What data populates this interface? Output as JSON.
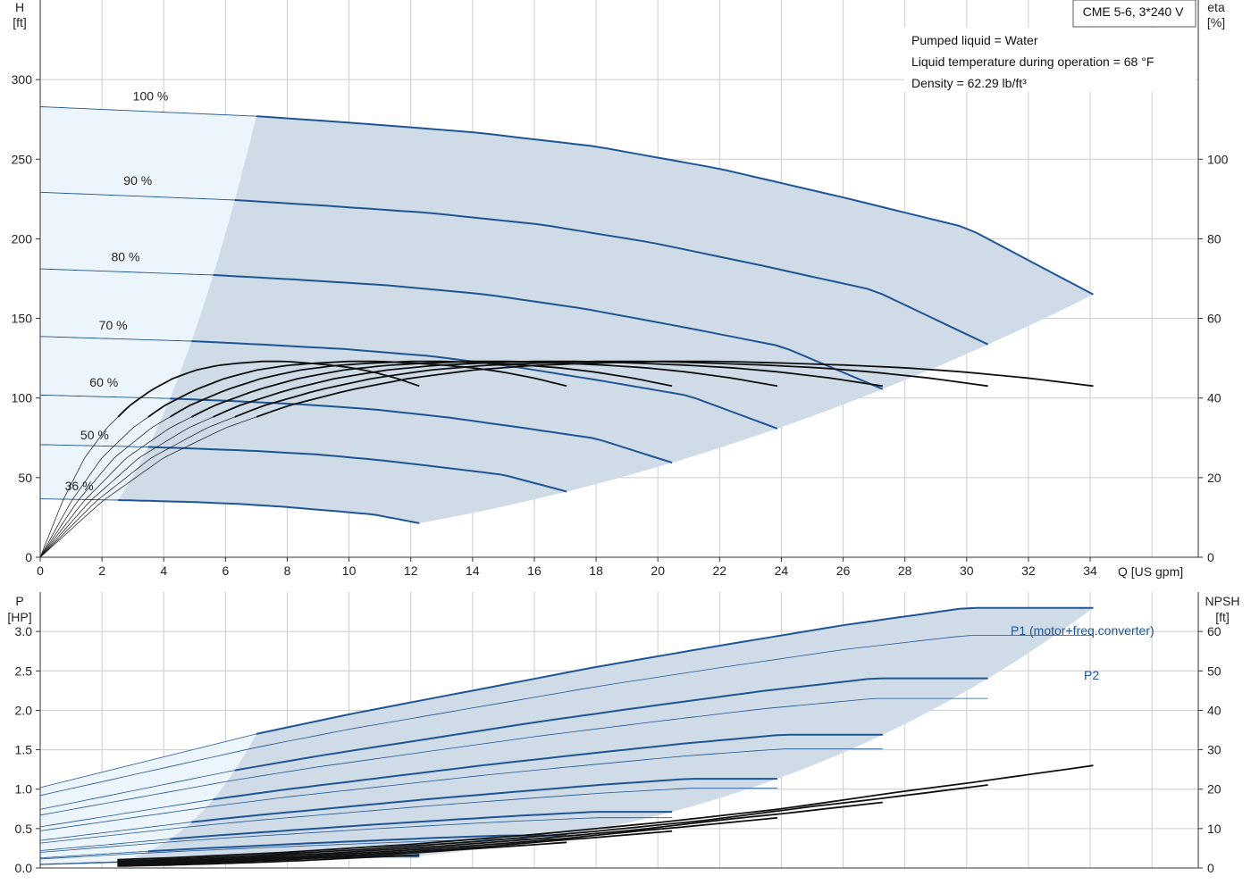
{
  "product_box": "CME 5-6, 3*240 V",
  "info_lines": [
    "Pumped liquid = Water",
    "Liquid temperature during operation = 68 °F",
    "Density = 62.29 lb/ft³"
  ],
  "colors": {
    "curve": "#1f5595",
    "efficiency": "#111111",
    "operating_area": "#cfdbe7",
    "extended_area": "#ecf5fc",
    "grid": "#cccccc",
    "axis": "#333333"
  },
  "chart_data": [
    {
      "type": "line",
      "title": "",
      "xlabel": "Q [US gpm]",
      "ylabel": "H [ft]",
      "y2label": "eta [%]",
      "xlim": [
        0,
        37.5
      ],
      "ylim": [
        0,
        350
      ],
      "y2lim": [
        0,
        140
      ],
      "xticks": [
        0,
        2,
        4,
        6,
        8,
        10,
        12,
        14,
        16,
        18,
        20,
        22,
        24,
        26,
        28,
        30,
        32,
        34
      ],
      "yticks": [
        0,
        50,
        100,
        150,
        200,
        250,
        300
      ],
      "y2ticks": [
        0,
        20,
        40,
        60,
        80,
        100
      ],
      "grid": true,
      "speeds": [
        {
          "label": "100 %",
          "frac": 1.0,
          "label_x": 3.0,
          "label_y": 287
        },
        {
          "label": "90 %",
          "frac": 0.9,
          "label_x": 2.7,
          "label_y": 234
        },
        {
          "label": "80 %",
          "frac": 0.8,
          "label_x": 2.3,
          "label_y": 186
        },
        {
          "label": "70 %",
          "frac": 0.7,
          "label_x": 1.9,
          "label_y": 143
        },
        {
          "label": "60 %",
          "frac": 0.6,
          "label_x": 1.6,
          "label_y": 107
        },
        {
          "label": "50 %",
          "frac": 0.5,
          "label_x": 1.3,
          "label_y": 74
        },
        {
          "label": "36 %",
          "frac": 0.36,
          "label_x": 0.8,
          "label_y": 42
        }
      ],
      "head_curve_100": {
        "q": [
          0,
          7,
          10,
          14,
          18,
          22,
          26,
          30,
          34.1
        ],
        "h": [
          283,
          277,
          273,
          267,
          258,
          244,
          226,
          207,
          165
        ]
      },
      "efficiency_curve_100": {
        "q": [
          0,
          2,
          4,
          6,
          8,
          10,
          12,
          14,
          16,
          18,
          20,
          22,
          24,
          26,
          28,
          30,
          32,
          34.1
        ],
        "eta": [
          0,
          14,
          25,
          32.5,
          38,
          42,
          45,
          47,
          48.2,
          48.8,
          49.2,
          49.2,
          48.8,
          48.3,
          47.6,
          46.5,
          45,
          43
        ]
      }
    },
    {
      "type": "line",
      "title": "",
      "xlabel": "Q [US gpm]",
      "ylabel": "P [HP]",
      "y2label": "NPSH [ft]",
      "xlim": [
        0,
        37.5
      ],
      "ylim": [
        0,
        3.5
      ],
      "y2lim": [
        0,
        70
      ],
      "yticks": [
        0.0,
        0.5,
        1.0,
        1.5,
        2.0,
        2.5,
        3.0
      ],
      "ytick_labels": [
        "0.0",
        "0.5",
        "1.0",
        "1.5",
        "2.0",
        "2.5",
        "3.0"
      ],
      "y2ticks": [
        0,
        10,
        20,
        30,
        40,
        50,
        60
      ],
      "grid": true,
      "series": [
        {
          "name": "P1 (motor+freq.converter)",
          "q": [
            0,
            7,
            10,
            14,
            18,
            22,
            26,
            30,
            34.1
          ],
          "p": [
            1.02,
            1.7,
            1.95,
            2.25,
            2.55,
            2.82,
            3.08,
            3.3,
            3.3
          ]
        },
        {
          "name": "P2",
          "q": [
            0,
            7,
            10,
            14,
            18,
            22,
            26,
            30,
            34.1
          ],
          "p": [
            0.92,
            1.53,
            1.76,
            2.03,
            2.3,
            2.54,
            2.77,
            2.95,
            2.95
          ]
        }
      ],
      "npsh_curve_100": {
        "q": [
          0,
          4,
          8,
          12,
          16,
          20,
          24,
          28,
          30,
          34.1
        ],
        "npsh": [
          1.5,
          2.5,
          4,
          6,
          8.5,
          11.5,
          15,
          19.5,
          21.5,
          26
        ]
      }
    }
  ]
}
